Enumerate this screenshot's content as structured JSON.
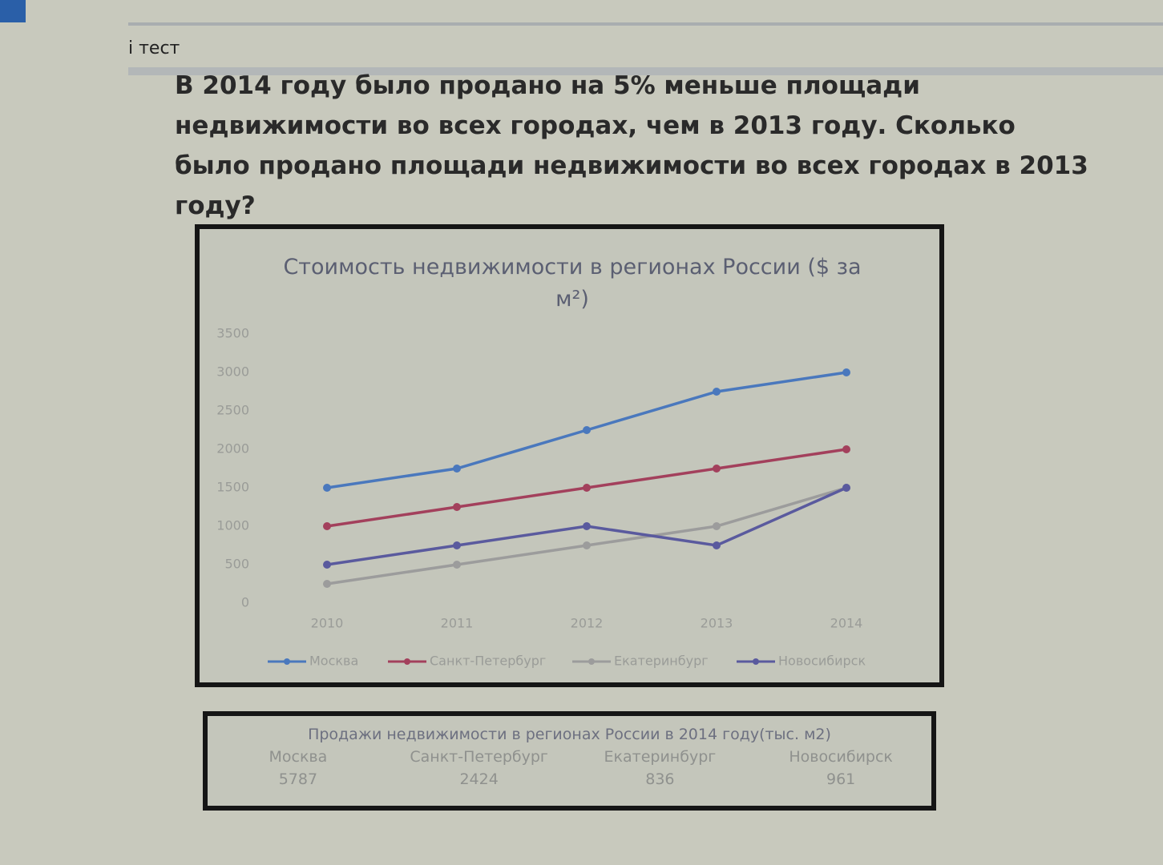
{
  "header": {
    "title": "і тест"
  },
  "question": "В 2014 году было продано на 5% меньше площади недвижимости во всех городах, чем в 2013 году. Сколько было продано площади недвижимости во всех городах в 2013 году?",
  "chart_data": {
    "type": "line",
    "title": "Стоимость недвижимости в регионах России ($ за м²)",
    "categories": [
      "2010",
      "2011",
      "2012",
      "2013",
      "2014"
    ],
    "series": [
      {
        "name": "Москва",
        "color": "#4a78bd",
        "values": [
          1500,
          1750,
          2250,
          2750,
          3000
        ]
      },
      {
        "name": "Санкт-Петербург",
        "color": "#a3405c",
        "values": [
          1000,
          1250,
          1500,
          1750,
          2000
        ]
      },
      {
        "name": "Екатеринбург",
        "color": "#9c9c9c",
        "values": [
          250,
          500,
          750,
          1000,
          1500
        ]
      },
      {
        "name": "Новосибирск",
        "color": "#5a5a9e",
        "values": [
          500,
          750,
          1000,
          750,
          1500
        ]
      }
    ],
    "ylim": [
      0,
      3500
    ],
    "yticks": [
      0,
      500,
      1000,
      1500,
      2000,
      2500,
      3000,
      3500
    ],
    "legend": "bottom"
  },
  "table": {
    "title": "Продажи недвижимости в регионах России в 2014 году(тыс. м2)",
    "columns": [
      "Москва",
      "Санкт-Петербург",
      "Екатеринбург",
      "Новосибирск"
    ],
    "rows": [
      [
        5787,
        2424,
        836,
        961
      ]
    ]
  }
}
